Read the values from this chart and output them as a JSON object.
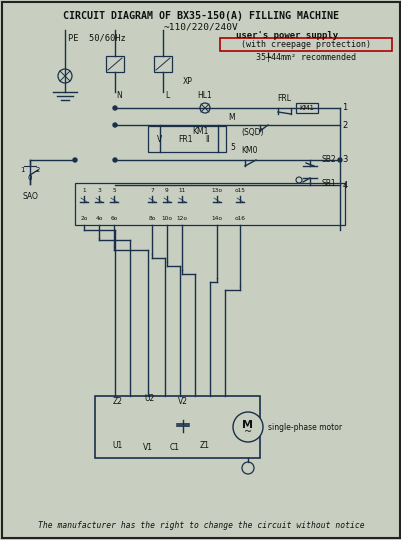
{
  "title": "CIRCUIT DIAGRAM OF BX35-150(A) FILLING MACHINE",
  "subtitle": "~110/220/240V",
  "pe_label": "PE  50/60Hz",
  "power_label": "user's power supply",
  "creepage_label": "(with creepage protection)",
  "wire_label": "35╄44mm² recommended",
  "footer": "The manufacturer has the right to change the circuit without notice",
  "bg_color": "#c8cfc0",
  "line_color": "#1a2f4a",
  "text_color": "#111111",
  "red_color": "#aa0000",
  "border_color": "#222222",
  "fig_w": 4.02,
  "fig_h": 5.4,
  "dpi": 100
}
